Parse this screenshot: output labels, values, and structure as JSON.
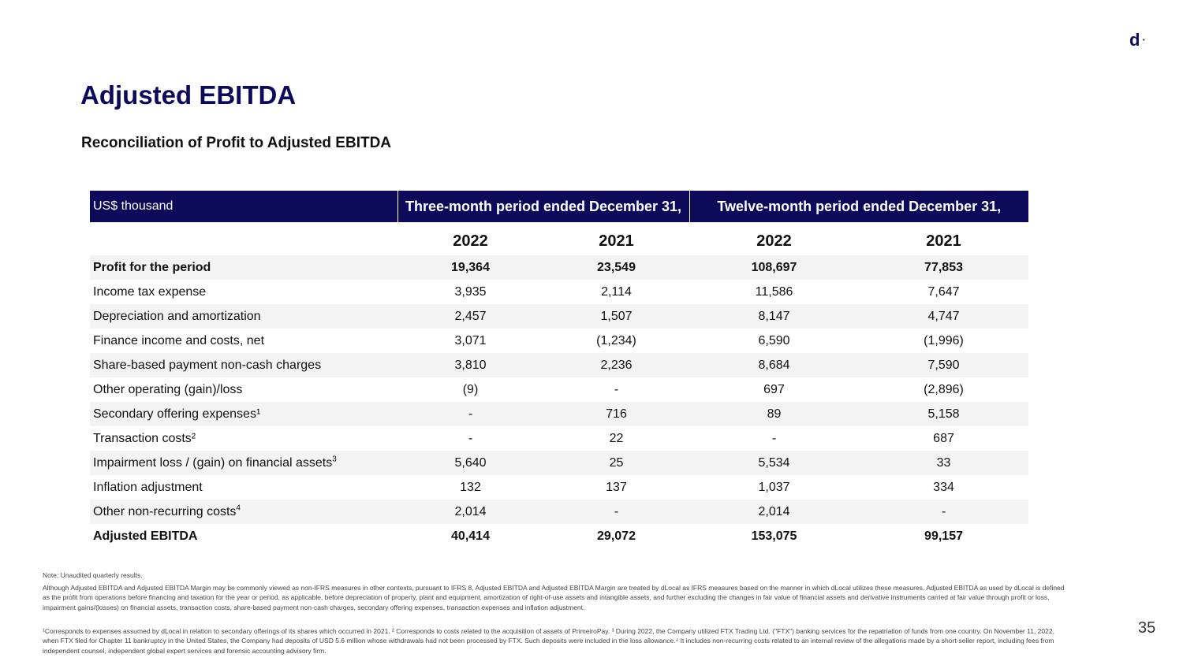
{
  "logo": {
    "text": "d",
    "dot": "·"
  },
  "title": "Adjusted EBITDA",
  "subtitle": "Reconciliation of Profit to Adjusted EBITDA",
  "table": {
    "unit_label": "US$ thousand",
    "group_headers": [
      "Three-month period ended December 31,",
      "Twelve-month period ended December 31,"
    ],
    "years": [
      "2022",
      "2021",
      "2022",
      "2021"
    ],
    "rows": [
      {
        "label": "Profit for the period",
        "sup": "",
        "values": [
          "19,364",
          "23,549",
          "108,697",
          "77,853"
        ]
      },
      {
        "label": "Income tax expense",
        "sup": "",
        "values": [
          "3,935",
          "2,114",
          "11,586",
          "7,647"
        ]
      },
      {
        "label": "Depreciation and amortization",
        "sup": "",
        "values": [
          "2,457",
          "1,507",
          "8,147",
          "4,747"
        ]
      },
      {
        "label": "Finance income and costs, net",
        "sup": "",
        "values": [
          "3,071",
          "(1,234)",
          "6,590",
          "(1,996)"
        ]
      },
      {
        "label": "Share-based payment non-cash charges",
        "sup": "",
        "values": [
          "3,810",
          "2,236",
          "8,684",
          "7,590"
        ]
      },
      {
        "label": "Other operating (gain)/loss",
        "sup": "",
        "values": [
          "(9)",
          "-",
          "697",
          "(2,896)"
        ]
      },
      {
        "label": "Secondary offering expenses¹",
        "sup": "",
        "values": [
          "-",
          "716",
          "89",
          "5,158"
        ]
      },
      {
        "label": "Transaction costs²",
        "sup": "",
        "values": [
          "-",
          "22",
          "-",
          "687"
        ]
      },
      {
        "label": "Impairment loss / (gain) on financial assets",
        "sup": "3",
        "values": [
          "5,640",
          "25",
          "5,534",
          "33"
        ]
      },
      {
        "label": "Inflation adjustment",
        "sup": "",
        "values": [
          "132",
          "137",
          "1,037",
          "334"
        ]
      },
      {
        "label": "Other non-recurring costs",
        "sup": "4",
        "values": [
          "2,014",
          "-",
          "2,014",
          "-"
        ]
      },
      {
        "label": "Adjusted EBITDA",
        "sup": "",
        "values": [
          "40,414",
          "29,072",
          "153,075",
          "99,157"
        ]
      }
    ]
  },
  "notes": {
    "note1": "Note: Unaudited quarterly results.",
    "note2": "Although Adjusted EBITDA and Adjusted EBITDA Margin may be commonly viewed as non-IFRS measures in other contexts, pursuant to IFRS 8, Adjusted EBITDA and Adjusted EBITDA Margin are treated by dLocal as IFRS measures based on the manner in which dLocal utilizes these measures. Adjusted EBITDA as used by dLocal is defined as the profit from operations before financing and taxation for the year or period, as applicable, before depreciation of property, plant and equipment, amortization of right-of-use assets and intangible assets, and further excluding the changes in fair value of financial assets and derivative instruments carried at fair value through profit or loss, impairment gains/(losses) on financial assets, transaction costs, share-based payment non-cash charges, secondary offering expenses, transaction expenses and inflation adjustment.",
    "note3": "¹Corresponds to expenses assumed by dLocal in relation to secondary offerings of its shares which occurred in 2021. ² Corresponds to costs related to the acquisition of assets of PrimeiroPay. ³ During 2022, the Company utilized FTX Trading Ltd. (\"FTX\") banking services for the repatriation of funds from one country. On November 11, 2022, when FTX filed for Chapter 11 bankruptcy in the United States, the Company had deposits of USD 5.6 million whose withdrawals had not been processed by FTX. Such deposits were included in the loss allowance.⁴ It includes non-recurring costs related to an internal review of the allegations made by a short-seller report, including fees from independent counsel, independent global expert services and forensic accounting advisory firm."
  },
  "page_number": "35",
  "colors": {
    "brand_navy": "#0d0a5a",
    "row_shade": "#f3f3f3"
  }
}
